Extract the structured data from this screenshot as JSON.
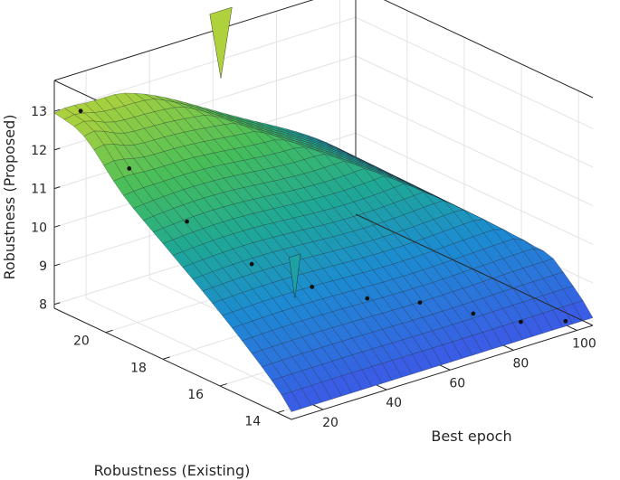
{
  "chart_data": {
    "type": "surface",
    "xlabel": "Best epoch",
    "ylabel": "Robustness (Existing)",
    "zlabel": "Robustness (Proposed)",
    "x_ticks": [
      "20",
      "40",
      "60",
      "80",
      "100"
    ],
    "y_ticks": [
      "14",
      "16",
      "18",
      "20"
    ],
    "z_ticks": [
      "8",
      "9",
      "10",
      "11",
      "12",
      "13"
    ],
    "xlim": [
      10,
      105
    ],
    "ylim": [
      13.5,
      21.8
    ],
    "zlim": [
      7.9,
      13.8
    ],
    "grid": true,
    "colormap": "parula",
    "colors": {
      "low": "#3d5ce6",
      "mid": "#1fa89a",
      "high": "#9fd14a",
      "edge": "#1b1b1b",
      "axis": "#262626",
      "grid": "#e3e3e3"
    },
    "scatter_points": [
      {
        "x": 12,
        "y": 21.1,
        "z": 13.2
      },
      {
        "x": 12,
        "y": 19.4,
        "z": 12.3
      },
      {
        "x": 14,
        "y": 17.6,
        "z": 11.5
      },
      {
        "x": 20,
        "y": 16.0,
        "z": 10.8
      },
      {
        "x": 30,
        "y": 15.0,
        "z": 10.3
      },
      {
        "x": 42,
        "y": 14.4,
        "z": 9.9
      },
      {
        "x": 55,
        "y": 14.0,
        "z": 9.6
      },
      {
        "x": 70,
        "y": 13.8,
        "z": 9.0
      },
      {
        "x": 85,
        "y": 13.8,
        "z": 8.4
      },
      {
        "x": 100,
        "y": 13.9,
        "z": 8.0
      }
    ]
  }
}
